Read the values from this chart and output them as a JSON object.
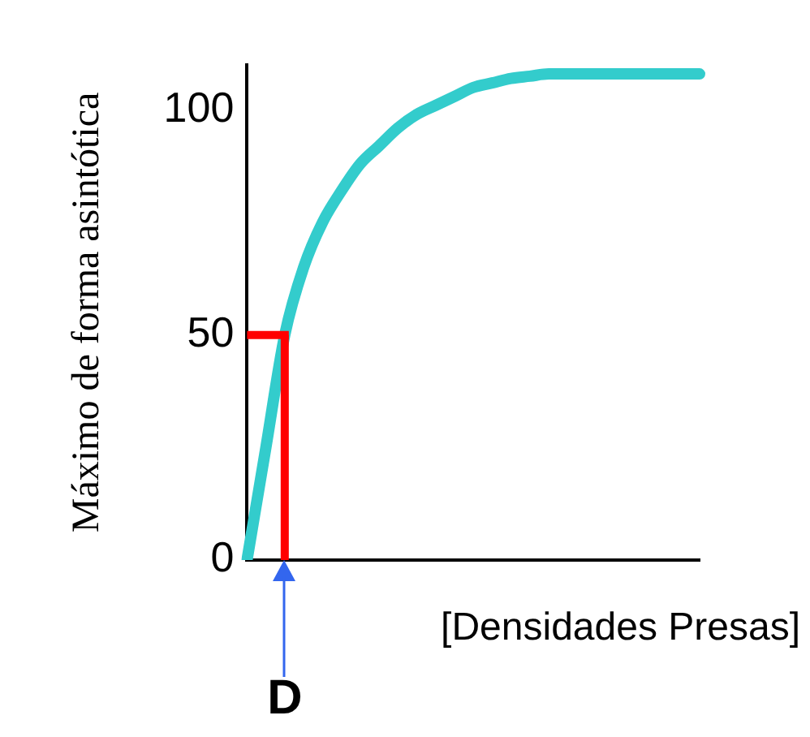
{
  "chart_data": {
    "type": "line",
    "ylabel": "Máximo de forma asintótica",
    "xlabel": "[Densidades Presas]",
    "categories": [
      null,
      null,
      "D",
      null,
      null,
      null,
      null,
      null,
      null,
      null,
      null,
      null,
      null,
      null,
      null,
      null,
      null,
      null,
      null,
      null,
      null,
      null,
      null,
      null,
      null
    ],
    "series": [
      {
        "color": "#33cccc",
        "values": [
          0,
          25,
          50,
          65,
          75,
          82,
          88,
          92,
          96,
          99,
          101,
          103,
          105,
          106,
          107,
          107.5,
          108,
          108,
          108,
          108,
          108,
          108,
          108,
          108,
          108
        ]
      }
    ],
    "ylim": [
      0,
      110
    ],
    "yticks": [
      0,
      50,
      100
    ],
    "grid": false,
    "legend": false,
    "marker": "none",
    "line_style": "solid",
    "tick_labels": "y",
    "ref_lines": [
      {
        "axis": "x",
        "value": "D",
        "color": "#ff0000"
      },
      {
        "axis": "y",
        "value": 50,
        "color": "#ff0000"
      }
    ]
  }
}
